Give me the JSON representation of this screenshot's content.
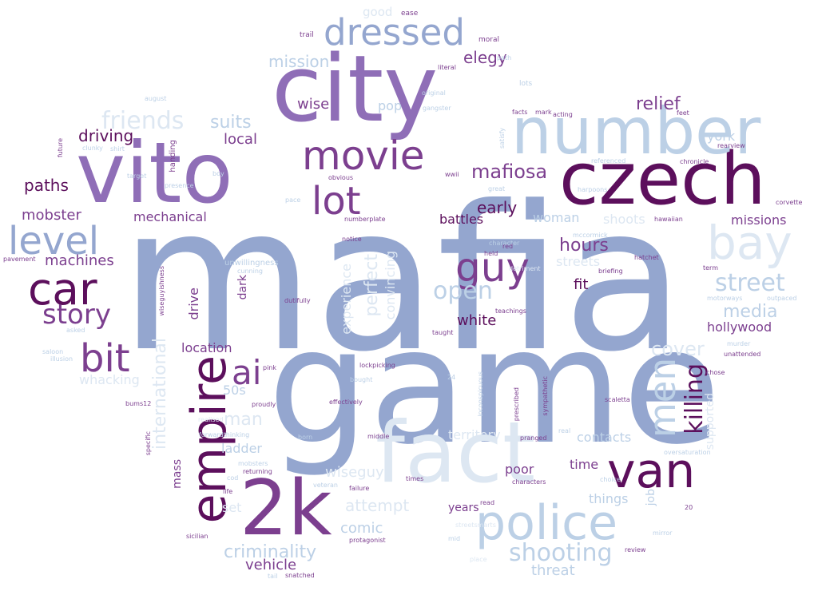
{
  "palette": {
    "dark_purple": "#5c0f5c",
    "mid_purple": "#8f6eb7",
    "purple": "#7c3f8f",
    "blue_gray": "#94a6cf",
    "light_blue": "#bcd0e6",
    "pale_blue": "#dde7f2"
  },
  "words": [
    "mafia",
    "game",
    "city",
    "vito",
    "fact",
    "czech",
    "number",
    "2k",
    "police",
    "van",
    "car",
    "level",
    "empire",
    "bay",
    "movie",
    "lot",
    "bit",
    "guy",
    "dressed",
    "men",
    "ai",
    "story",
    "killing",
    "street",
    "friends",
    "open",
    "mafiosa",
    "shooting",
    "criminality",
    "international",
    "cover",
    "relief",
    "media",
    "suits",
    "elegy",
    "mission",
    "driving",
    "paths",
    "mobster",
    "machines",
    "mechanical",
    "local",
    "wise",
    "pop",
    "hours",
    "early",
    "woman",
    "shoots",
    "battles",
    "fit",
    "white",
    "hollywood",
    "missions",
    "york",
    "streets",
    "location",
    "drive",
    "50s",
    "dark",
    "perfect",
    "experience",
    "convincing",
    "whacking",
    "ladder",
    "man",
    "mass",
    "wiseguys",
    "attempt",
    "comic",
    "set",
    "vehicle",
    "threat",
    "contacts",
    "territory",
    "time",
    "things",
    "poor",
    "years",
    "job",
    "supported",
    "good",
    "ease",
    "trail",
    "moral",
    "literal",
    "path",
    "lots",
    "original",
    "gangster",
    "acting",
    "facts",
    "mark",
    "feet",
    "august",
    "handing",
    "future",
    "clunky",
    "shirt",
    "target",
    "boy",
    "presence",
    "satisfy",
    "chronicle",
    "wwii",
    "rearview",
    "obvious",
    "referenced",
    "harpoons",
    "corvette",
    "pace",
    "great",
    "numberplate",
    "hawaiian",
    "mccormick",
    "briefing",
    "term",
    "hatchet",
    "pavement",
    "unwillingness",
    "cunning",
    "notice",
    "character",
    "motorways",
    "outpaced",
    "dutifully",
    "teachings",
    "wiseguyishness",
    "taught",
    "murder",
    "unattended",
    "lockpicking",
    "saloon",
    "illusion",
    "chose",
    "bought",
    "pink",
    "24",
    "sympathetic",
    "prescribed",
    "inconspicuous",
    "scaletta",
    "bums12",
    "proudly",
    "effectively",
    "realised",
    "specific",
    "forwardthinking",
    "born",
    "middle",
    "pranged",
    "real",
    "oversaturation",
    "mobsters",
    "returning",
    "cod",
    "life",
    "veteran",
    "failure",
    "times",
    "characters",
    "choice",
    "read",
    "sicilian",
    "protagonist",
    "mid",
    "mirror",
    "review",
    "place",
    "tail",
    "snatched",
    "20",
    "red",
    "held",
    "asked",
    "detriment",
    "streetsmarts"
  ]
}
